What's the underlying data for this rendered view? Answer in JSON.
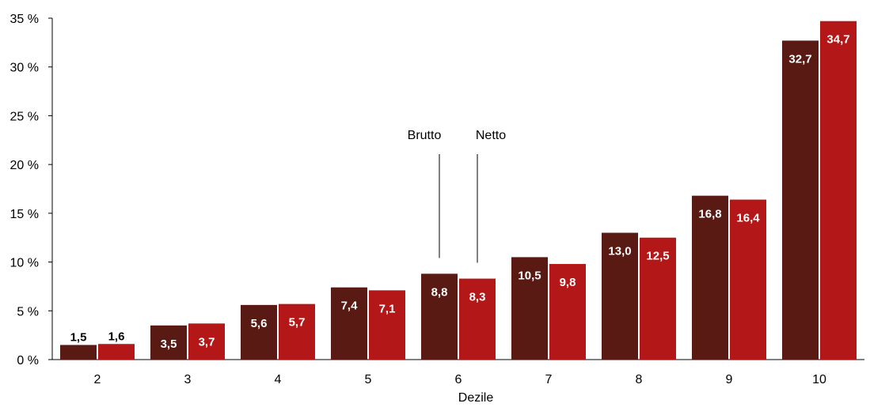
{
  "chart_data": {
    "type": "bar",
    "xlabel": "Dezile",
    "ylabel": "",
    "ylim": [
      0,
      35
    ],
    "y_ticks": [
      "0 %",
      "5 %",
      "10 %",
      "15 %",
      "20 %",
      "25 %",
      "30 %",
      "35 %"
    ],
    "grid": false,
    "categories": [
      "2",
      "3",
      "4",
      "5",
      "6",
      "7",
      "8",
      "9",
      "10"
    ],
    "series": [
      {
        "name": "Brutto",
        "color": "#5a1a14",
        "values": [
          1.5,
          3.5,
          5.6,
          7.4,
          8.8,
          10.5,
          13.0,
          16.8,
          32.7
        ],
        "labels": [
          "1,5",
          "3,5",
          "5,6",
          "7,4",
          "8,8",
          "10,5",
          "13,0",
          "16,8",
          "32,7"
        ]
      },
      {
        "name": "Netto",
        "color": "#b31717",
        "values": [
          1.6,
          3.7,
          5.7,
          7.1,
          8.3,
          9.8,
          12.5,
          16.4,
          34.7
        ],
        "labels": [
          "1,6",
          "3,7",
          "5,7",
          "7,1",
          "8,3",
          "9,8",
          "12,5",
          "16,4",
          "34,7"
        ]
      }
    ],
    "annotations": [
      {
        "text": "Brutto",
        "series": 0,
        "category": "6"
      },
      {
        "text": "Netto",
        "series": 1,
        "category": "6"
      }
    ]
  }
}
